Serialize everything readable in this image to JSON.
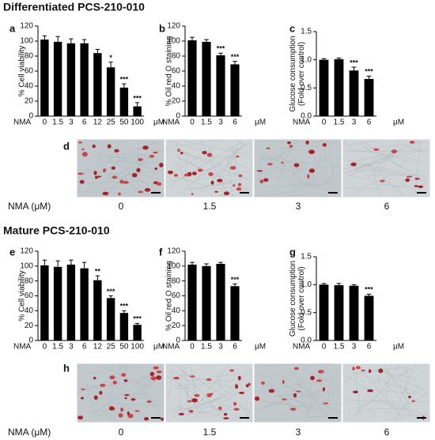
{
  "sections": [
    "Differentiated PCS-210-010",
    "Mature PCS-210-010"
  ],
  "chart_data": [
    {
      "type": "bar",
      "panel": "a",
      "ylabel": [
        "% Cell viability"
      ],
      "prefix": "NMA",
      "unit": "μM",
      "categories": [
        "0",
        "1.5",
        "3",
        "6",
        "12",
        "25",
        "50",
        "100"
      ],
      "values": [
        102,
        99,
        97,
        97,
        84,
        65,
        38,
        13
      ],
      "errors": [
        5,
        7,
        6,
        5,
        5,
        7,
        5,
        5
      ],
      "significance": [
        null,
        null,
        null,
        null,
        null,
        "*",
        "***",
        "***"
      ],
      "ylim": [
        0,
        120
      ],
      "yticks": [
        0,
        20,
        40,
        60,
        80,
        100,
        120
      ],
      "color": "#000000"
    },
    {
      "type": "bar",
      "panel": "b",
      "ylabel": [
        "% Oil red O staining"
      ],
      "prefix": "NMA",
      "unit": "μM",
      "categories": [
        "0",
        "1.5",
        "3",
        "6"
      ],
      "values": [
        101,
        99,
        81,
        69
      ],
      "errors": [
        4,
        3,
        3,
        4
      ],
      "significance": [
        null,
        null,
        "***",
        "***"
      ],
      "ylim": [
        0,
        120
      ],
      "yticks": [
        0,
        20,
        40,
        60,
        80,
        100,
        120
      ],
      "color": "#000000"
    },
    {
      "type": "bar",
      "panel": "c",
      "ylabel": [
        "Glucose consumption",
        "(Fold over control)"
      ],
      "prefix": "NMA",
      "unit": "μM",
      "categories": [
        "0",
        "1.5",
        "3",
        "6"
      ],
      "values": [
        1.0,
        1.01,
        0.81,
        0.66
      ],
      "errors": [
        0.02,
        0.02,
        0.06,
        0.05
      ],
      "significance": [
        null,
        null,
        "***",
        "***"
      ],
      "ylim": [
        0,
        1.5
      ],
      "yticks": [
        {
          "value": 0,
          "label": "0.0"
        },
        0.5,
        {
          "value": 1,
          "label": "1.0"
        },
        1.5
      ],
      "color": "#000000"
    },
    {
      "type": "bar",
      "panel": "e",
      "ylabel": [
        "% Cell viability"
      ],
      "prefix": "NMA",
      "unit": "μM",
      "categories": [
        "0",
        "1.5",
        "3",
        "6",
        "12",
        "25",
        "50",
        "100"
      ],
      "values": [
        101,
        99,
        102,
        97,
        81,
        57,
        37,
        21
      ],
      "errors": [
        7,
        8,
        6,
        8,
        6,
        3,
        3,
        2
      ],
      "significance": [
        null,
        null,
        null,
        null,
        "**",
        "***",
        "***",
        "***"
      ],
      "ylim": [
        0,
        120
      ],
      "yticks": [
        0,
        20,
        40,
        60,
        80,
        100,
        120
      ],
      "color": "#000000"
    },
    {
      "type": "bar",
      "panel": "f",
      "ylabel": [
        "% Oil red O staining"
      ],
      "prefix": "NMA",
      "unit": "μM",
      "categories": [
        "0",
        "1.5",
        "3",
        "6"
      ],
      "values": [
        102,
        100,
        103,
        73
      ],
      "errors": [
        3,
        3,
        2,
        3
      ],
      "significance": [
        null,
        null,
        null,
        "***"
      ],
      "ylim": [
        0,
        120
      ],
      "yticks": [
        0,
        20,
        40,
        60,
        80,
        100,
        120
      ],
      "color": "#000000"
    },
    {
      "type": "bar",
      "panel": "g",
      "ylabel": [
        "Glucose consumption",
        "(Fold over control)"
      ],
      "prefix": "NMA",
      "unit": "μM",
      "categories": [
        "0",
        "1.5",
        "3",
        "6"
      ],
      "values": [
        1.0,
        0.99,
        0.98,
        0.8
      ],
      "errors": [
        0.02,
        0.03,
        0.02,
        0.03
      ],
      "significance": [
        null,
        null,
        null,
        "***"
      ],
      "ylim": [
        0,
        1.5
      ],
      "yticks": [
        {
          "value": 0,
          "label": "0.0"
        },
        0.5,
        {
          "value": 1,
          "label": "1.0"
        },
        1.5
      ],
      "color": "#000000"
    }
  ],
  "images": [
    {
      "panel": "d",
      "label": "NMA (μM)",
      "doses": [
        "0",
        "1.5",
        "3",
        "6"
      ]
    },
    {
      "panel": "h",
      "label": "NMA (μM)",
      "doses": [
        "0",
        "1.5",
        "3",
        "6"
      ]
    }
  ]
}
